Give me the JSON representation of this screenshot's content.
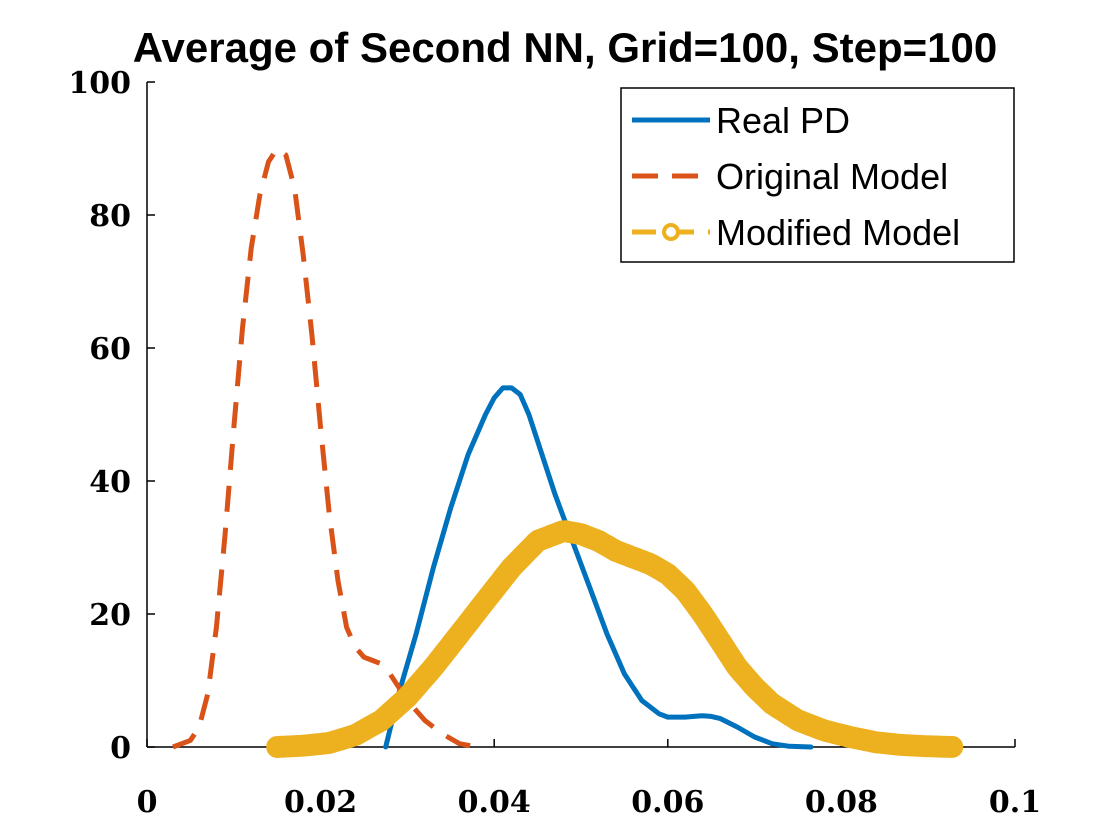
{
  "chart_data": {
    "type": "line",
    "title": "Average of Second NN, Grid=100, Step=100",
    "xlabel": "",
    "ylabel": "",
    "xlim": [
      0,
      0.1
    ],
    "ylim": [
      0,
      100
    ],
    "x_ticks": [
      "0",
      "0.02",
      "0.04",
      "0.06",
      "0.08",
      "0.1"
    ],
    "y_ticks": [
      "0",
      "20",
      "40",
      "60",
      "80",
      "100"
    ],
    "legend_position": "top-right",
    "grid": false,
    "series": [
      {
        "name": "Real PD",
        "color": "#0072bd",
        "style": "solid",
        "x": [
          0.0275,
          0.029,
          0.031,
          0.033,
          0.035,
          0.037,
          0.039,
          0.04,
          0.041,
          0.042,
          0.043,
          0.044,
          0.045,
          0.047,
          0.049,
          0.051,
          0.053,
          0.055,
          0.057,
          0.059,
          0.06,
          0.061,
          0.062,
          0.063,
          0.064,
          0.065,
          0.066,
          0.068,
          0.07,
          0.072,
          0.074,
          0.0765
        ],
        "y": [
          0,
          8,
          17,
          27,
          36,
          44,
          50,
          52.5,
          54,
          54,
          53,
          50,
          46,
          38,
          31,
          24,
          17,
          11,
          7,
          5,
          4.5,
          4.5,
          4.5,
          4.6,
          4.7,
          4.6,
          4.3,
          3,
          1.5,
          0.5,
          0.1,
          0
        ]
      },
      {
        "name": "Original Model",
        "color": "#d95319",
        "style": "dashed",
        "x": [
          0.003,
          0.005,
          0.006,
          0.007,
          0.008,
          0.009,
          0.01,
          0.011,
          0.012,
          0.013,
          0.014,
          0.015,
          0.016,
          0.017,
          0.018,
          0.019,
          0.02,
          0.021,
          0.022,
          0.023,
          0.024,
          0.025,
          0.026,
          0.027,
          0.028,
          0.03,
          0.032,
          0.034,
          0.036,
          0.038
        ],
        "y": [
          0,
          1,
          3,
          8,
          18,
          32,
          48,
          63,
          75,
          83,
          88,
          90,
          89,
          84,
          74,
          62,
          48,
          35,
          25,
          18,
          15,
          13.5,
          13,
          12.5,
          11,
          7,
          4,
          2,
          0.5,
          0
        ]
      },
      {
        "name": "Modified Model",
        "color": "#edb120",
        "style": "dashed-circle",
        "x": [
          0.015,
          0.018,
          0.021,
          0.024,
          0.027,
          0.03,
          0.033,
          0.036,
          0.039,
          0.042,
          0.045,
          0.047,
          0.048,
          0.05,
          0.052,
          0.054,
          0.056,
          0.058,
          0.06,
          0.062,
          0.064,
          0.066,
          0.068,
          0.07,
          0.072,
          0.075,
          0.078,
          0.081,
          0.084,
          0.087,
          0.09,
          0.093
        ],
        "y": [
          0,
          0.2,
          0.6,
          1.8,
          4,
          7.5,
          12,
          17,
          22,
          27,
          31,
          32,
          32.5,
          32,
          31,
          29.5,
          28.5,
          27.5,
          26,
          23.5,
          20,
          16,
          12,
          9,
          6.5,
          4,
          2.5,
          1.5,
          0.7,
          0.3,
          0.1,
          0
        ]
      }
    ]
  }
}
